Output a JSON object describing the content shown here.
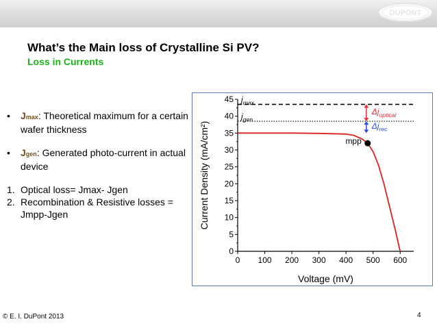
{
  "header": {
    "logo_text": "DUPONT",
    "title": "What’s the Main loss of Crystalline Si PV?",
    "subtitle": "Loss in Currents"
  },
  "bullets": [
    {
      "marker": "•",
      "term": "J",
      "sub": "max",
      "text": ": Theoretical maximum for a certain wafer thickness"
    },
    {
      "marker": "•",
      "term": "J",
      "sub": "gen",
      "text": ": Generated photo-current in actual device"
    }
  ],
  "numbered": [
    {
      "marker": "1.",
      "text": "Optical loss= Jmax- Jgen"
    },
    {
      "marker": "2.",
      "text": "Recombination & Resistive losses = Jmpp-Jgen"
    }
  ],
  "footer": {
    "copyright": "© E. I. DuPont 2013",
    "page": "4"
  },
  "chart_data": {
    "type": "line",
    "xlabel": "Voltage (mV)",
    "ylabel": "Current Density (mA/cm²)",
    "xlim": [
      0,
      650
    ],
    "ylim": [
      0,
      45
    ],
    "xticks": [
      0,
      100,
      200,
      300,
      400,
      500,
      600
    ],
    "yticks": [
      0,
      5,
      10,
      15,
      20,
      25,
      30,
      35,
      40,
      45
    ],
    "series": [
      {
        "name": "",
        "x": [
          0,
          100,
          200,
          300,
          400,
          430,
          460,
          480,
          500,
          520,
          540,
          560,
          580,
          600
        ],
        "y": [
          35,
          35,
          35,
          34.9,
          34.7,
          34.3,
          33.2,
          32,
          29.5,
          25.5,
          20,
          13.5,
          7,
          0
        ]
      }
    ],
    "reference_lines": [
      {
        "name": "jmax",
        "label_base": "j",
        "label_sub": "max",
        "y": 43.5,
        "style": "dashed"
      },
      {
        "name": "jgen",
        "label_base": "j",
        "label_sub": "gen",
        "y": 38.5,
        "style": "dotted"
      }
    ],
    "annotations": [
      {
        "text": "mpp",
        "x": 480,
        "y": 32
      },
      {
        "base": "Δj",
        "sub": "optical",
        "color": "#e03030"
      },
      {
        "base": "Δj",
        "sub": "rec",
        "color": "#2a4fd6"
      }
    ],
    "colors": {
      "curve": "#e02020",
      "optical": "#e03030",
      "rec": "#2a4fd6",
      "frame": "#5b79b8"
    }
  }
}
